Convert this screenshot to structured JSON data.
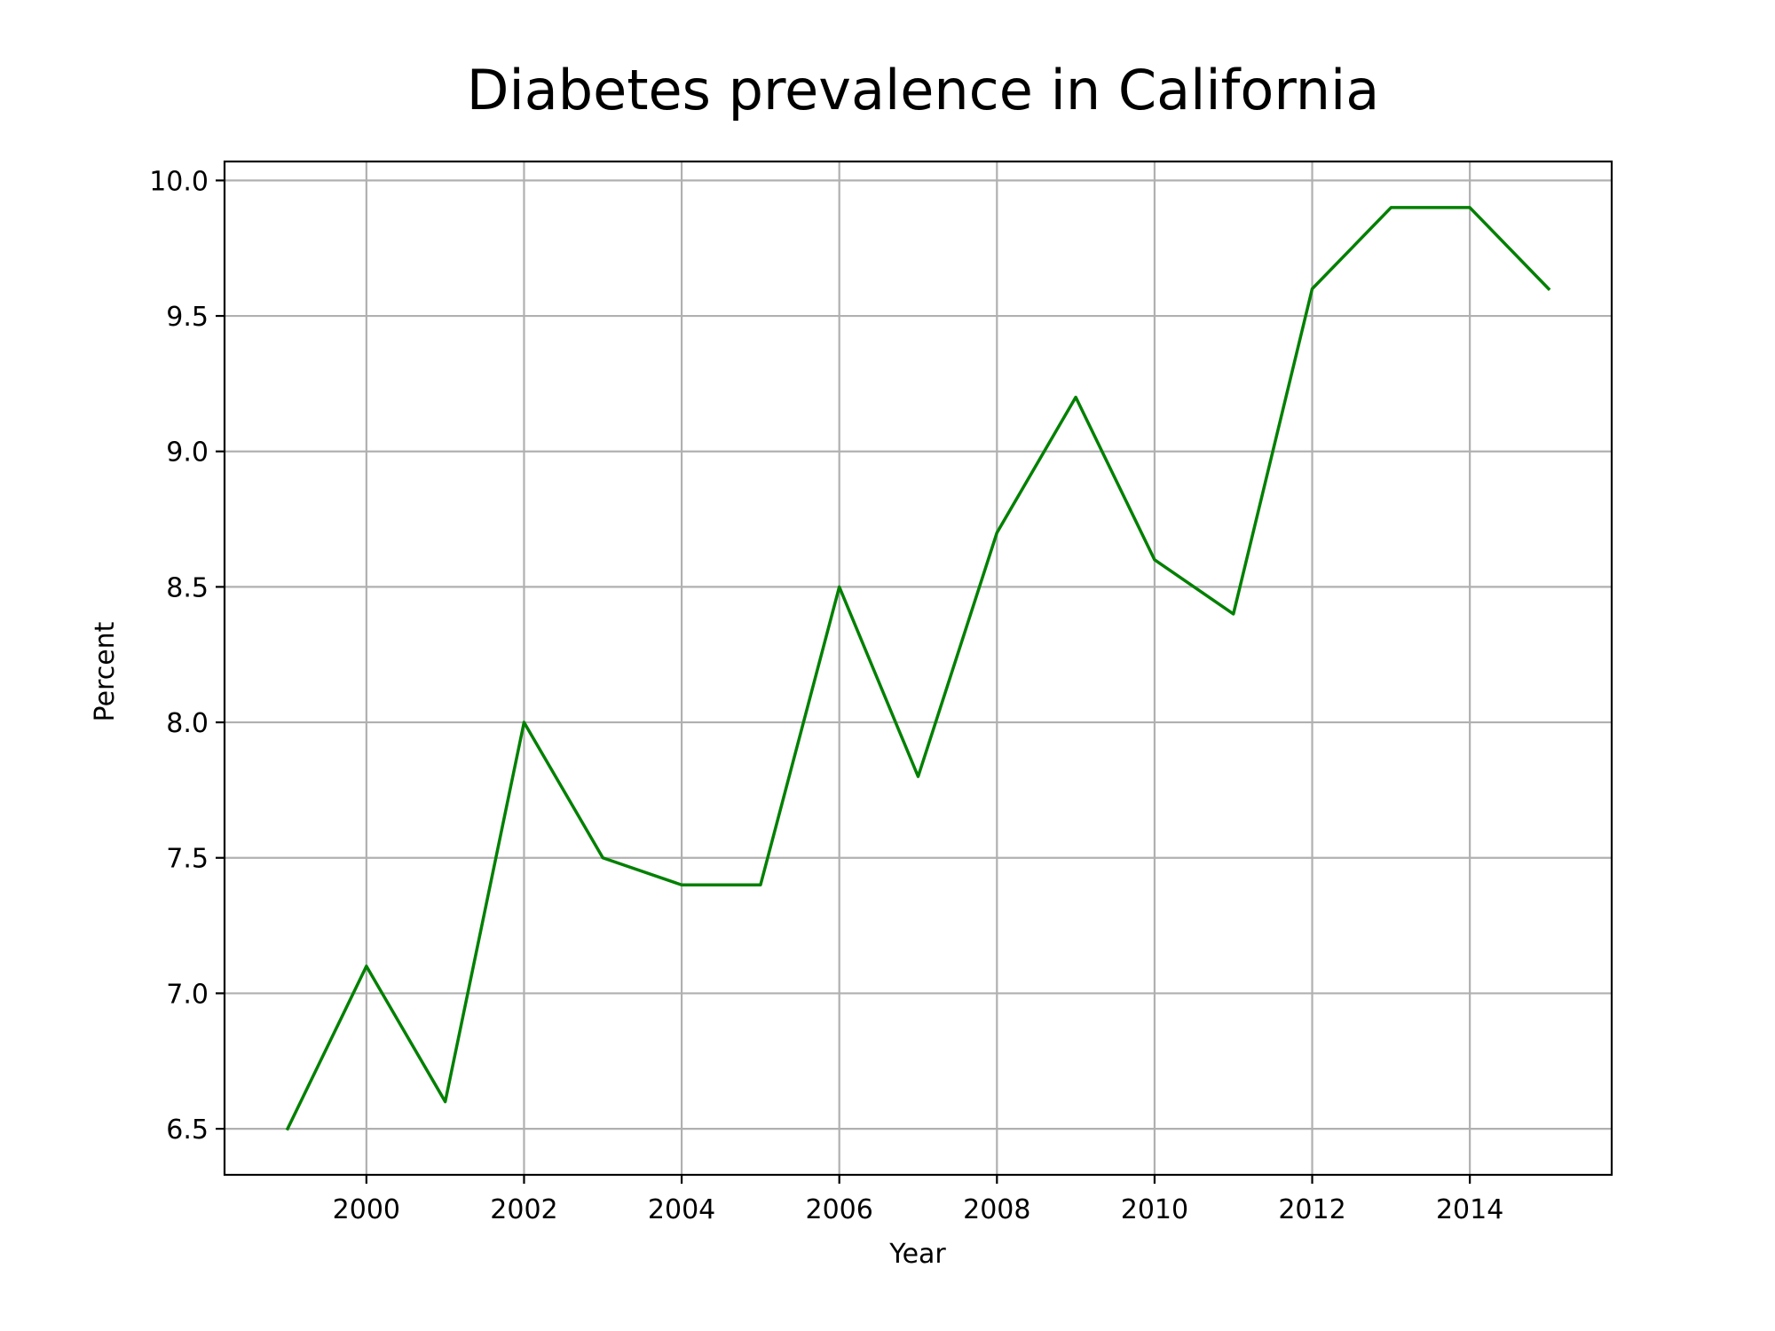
{
  "chart_data": {
    "type": "line",
    "title": "Diabetes prevalence in California",
    "xlabel": "Year",
    "ylabel": "Percent",
    "x": [
      1999,
      2000,
      2001,
      2002,
      2003,
      2004,
      2005,
      2006,
      2007,
      2008,
      2009,
      2010,
      2011,
      2012,
      2013,
      2014,
      2015
    ],
    "series": [
      {
        "values": [
          6.5,
          7.1,
          6.6,
          8.0,
          7.5,
          7.4,
          7.4,
          8.5,
          7.8,
          8.7,
          9.2,
          8.6,
          8.4,
          9.6,
          9.9,
          9.9,
          9.6
        ],
        "color": "#008000"
      }
    ],
    "xlim": [
      1998.2,
      2015.8
    ],
    "ylim": [
      6.33,
      10.07
    ],
    "xticks": [
      "2000",
      "2002",
      "2004",
      "2006",
      "2008",
      "2010",
      "2012",
      "2014"
    ],
    "yticks": [
      "6.5",
      "7.0",
      "7.5",
      "8.0",
      "8.5",
      "9.0",
      "9.5",
      "10.0"
    ],
    "grid": true,
    "legend": "none"
  }
}
